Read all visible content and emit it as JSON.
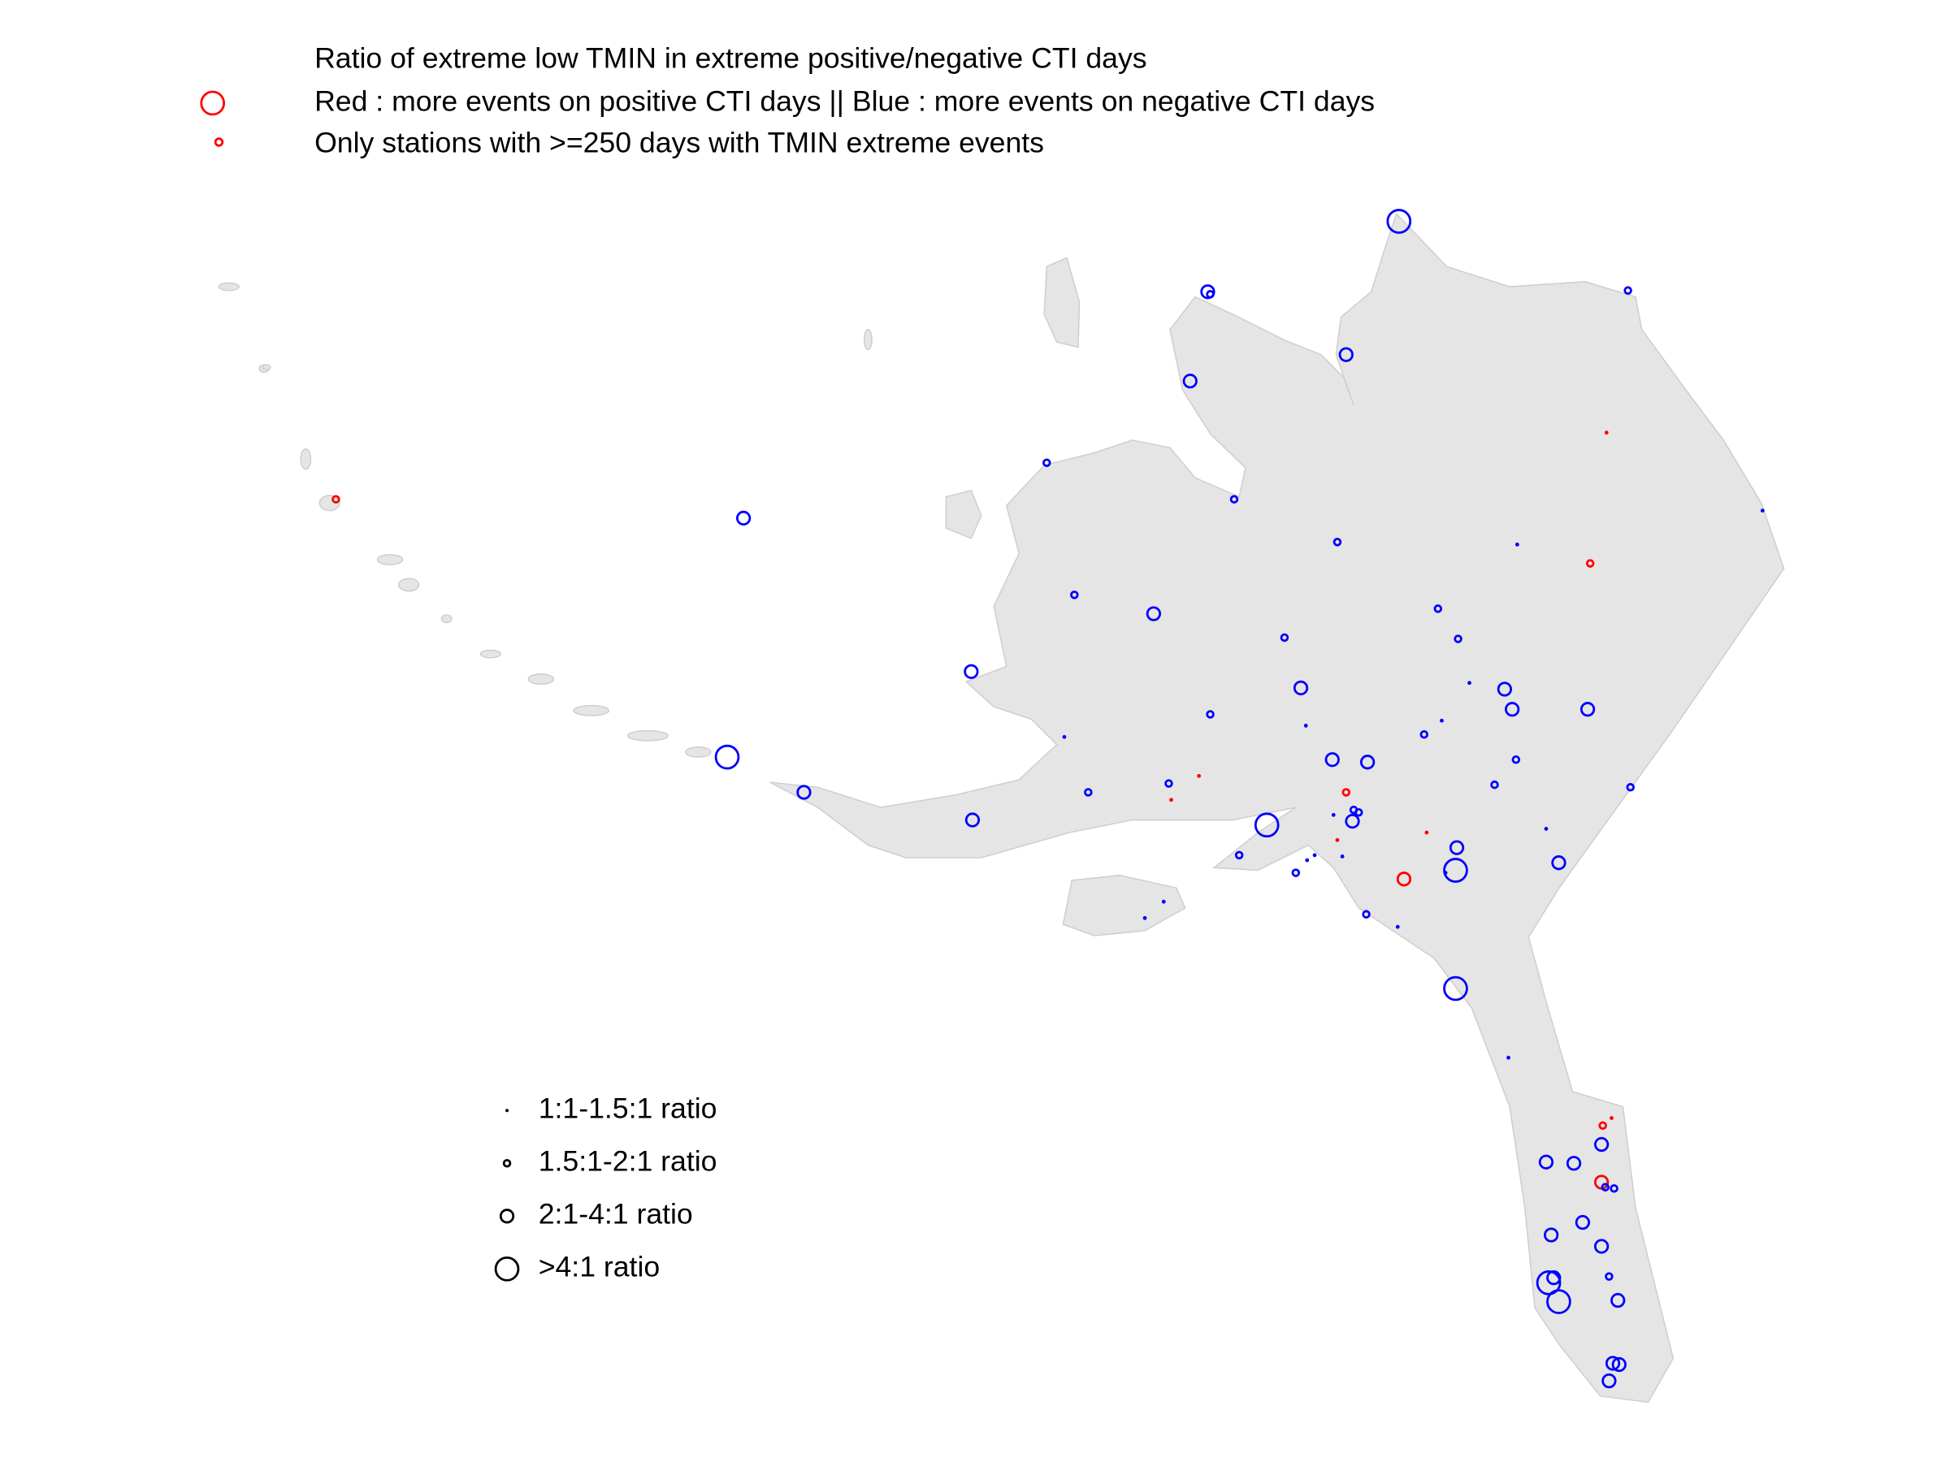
{
  "title": {
    "lines": [
      "Ratio of extreme low TMIN in extreme positive/negative CTI days",
      "Red : more events on positive CTI days || Blue : more events on negative CTI days",
      "Only stations with >=250 days with TMIN extreme events"
    ]
  },
  "legend": {
    "items": [
      "1:1-1.5:1 ratio",
      "1.5:1-2:1 ratio",
      "2:1-4:1 ratio",
      ">4:1 ratio"
    ]
  }
}
